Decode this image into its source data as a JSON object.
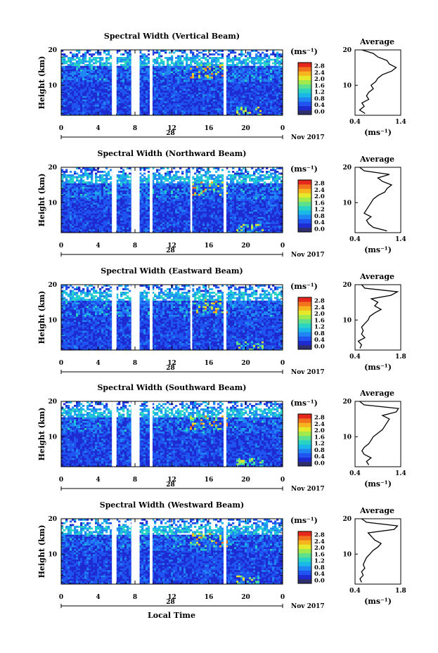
{
  "figure": {
    "bottom_xlabel": "Local Time",
    "colorbar": {
      "unit": "(ms⁻¹)",
      "ticks": [
        "0.0",
        "0.4",
        "0.8",
        "1.2",
        "1.6",
        "2.0",
        "2.4",
        "2.8"
      ],
      "colors": [
        "#2f2f6e",
        "#1e2bd0",
        "#1f54f0",
        "#1f86f3",
        "#19b8e6",
        "#2ad4c3",
        "#5fe08c",
        "#a2ea4c",
        "#e6e92a",
        "#f6b51f",
        "#f2721d",
        "#e5281b"
      ]
    },
    "xaxis_date_label": "Nov 2017",
    "day_label": "28"
  },
  "chart_data": [
    {
      "type": "heatmap",
      "title": "Spectral Width (Vertical Beam)",
      "ylabel": "Height (km)",
      "x_ticks": [
        "0",
        "4",
        "8",
        "12",
        "16",
        "20",
        "0"
      ],
      "xlim": [
        0,
        24
      ],
      "y_ticks": [
        "10",
        "20"
      ],
      "ylim": [
        1.5,
        20
      ],
      "data_gaps_hours": [
        [
          5.5,
          6.0
        ],
        [
          7.6,
          8.5
        ],
        [
          9.6,
          9.9
        ],
        [
          17.6,
          17.9
        ]
      ],
      "average_profile": {
        "title": "Average",
        "x_ticks": [
          "0.4",
          "1.4"
        ],
        "xlim": [
          0.4,
          1.4
        ],
        "xlabel": "(ms⁻¹)",
        "y_ticks": [
          "10",
          "20"
        ],
        "height_km": [
          2,
          3,
          4,
          5,
          6,
          7,
          8,
          9,
          10,
          11,
          12,
          13,
          14,
          15,
          16,
          17,
          18,
          19,
          20
        ],
        "width_ms": [
          0.62,
          0.5,
          0.6,
          0.55,
          0.7,
          0.65,
          0.7,
          0.8,
          0.75,
          0.85,
          0.9,
          1.0,
          1.2,
          1.3,
          1.15,
          1.1,
          0.9,
          0.8,
          0.55
        ]
      }
    },
    {
      "type": "heatmap",
      "title": "Spectral Width (Northward Beam)",
      "ylabel": "Height (km)",
      "x_ticks": [
        "0",
        "4",
        "8",
        "12",
        "16",
        "20",
        "0"
      ],
      "xlim": [
        0,
        24
      ],
      "y_ticks": [
        "10",
        "20"
      ],
      "ylim": [
        1.5,
        20
      ],
      "data_gaps_hours": [
        [
          5.5,
          6.0
        ],
        [
          7.6,
          8.5
        ],
        [
          9.6,
          9.9
        ],
        [
          14.0,
          14.2
        ],
        [
          17.6,
          17.9
        ]
      ],
      "average_profile": {
        "title": "Average",
        "x_ticks": [
          "0.4",
          "1.4"
        ],
        "xlim": [
          0.4,
          1.4
        ],
        "xlabel": "(ms⁻¹)",
        "y_ticks": [
          "10",
          "20"
        ],
        "height_km": [
          2,
          3,
          4,
          5,
          6,
          7,
          8,
          9,
          10,
          11,
          12,
          13,
          14,
          15,
          16,
          17,
          18,
          19,
          20
        ],
        "width_ms": [
          1.1,
          0.8,
          0.7,
          0.65,
          0.75,
          0.6,
          0.65,
          0.7,
          0.75,
          0.8,
          0.9,
          1.05,
          1.1,
          1.2,
          1.0,
          0.9,
          1.15,
          0.6,
          0.5
        ]
      }
    },
    {
      "type": "heatmap",
      "title": "Spectral Width (Eastward Beam)",
      "ylabel": "Height (km)",
      "x_ticks": [
        "0",
        "4",
        "8",
        "12",
        "16",
        "20",
        "0"
      ],
      "xlim": [
        0,
        24
      ],
      "y_ticks": [
        "10",
        "20"
      ],
      "ylim": [
        1.5,
        20
      ],
      "data_gaps_hours": [
        [
          5.5,
          6.0
        ],
        [
          7.6,
          8.5
        ],
        [
          9.6,
          9.9
        ],
        [
          14.0,
          14.2
        ],
        [
          17.6,
          17.9
        ]
      ],
      "average_profile": {
        "title": "Average",
        "x_ticks": [
          "0.4",
          "1.8"
        ],
        "xlim": [
          0.4,
          1.8
        ],
        "xlabel": "(ms⁻¹)",
        "y_ticks": [
          "10",
          "20"
        ],
        "height_km": [
          2,
          3,
          4,
          5,
          6,
          7,
          8,
          9,
          10,
          11,
          12,
          13,
          14,
          15,
          16,
          17,
          18,
          19,
          20
        ],
        "width_ms": [
          0.55,
          0.6,
          0.5,
          0.7,
          0.6,
          0.65,
          0.6,
          0.7,
          0.8,
          0.85,
          1.0,
          1.2,
          1.0,
          1.1,
          0.9,
          1.5,
          1.7,
          0.7,
          0.6
        ]
      }
    },
    {
      "type": "heatmap",
      "title": "Spectral Width (Southward Beam)",
      "ylabel": "Height (km)",
      "x_ticks": [
        "0",
        "4",
        "8",
        "12",
        "16",
        "20",
        "0"
      ],
      "xlim": [
        0,
        24
      ],
      "y_ticks": [
        "10",
        "20"
      ],
      "ylim": [
        1.5,
        20
      ],
      "data_gaps_hours": [
        [
          5.5,
          6.0
        ],
        [
          7.6,
          8.5
        ],
        [
          9.6,
          9.9
        ],
        [
          17.6,
          17.9
        ]
      ],
      "average_profile": {
        "title": "Average",
        "x_ticks": [
          "0.4",
          "1.4"
        ],
        "xlim": [
          0.4,
          1.4
        ],
        "xlabel": "(ms⁻¹)",
        "y_ticks": [
          "10",
          "20"
        ],
        "height_km": [
          2,
          3,
          4,
          5,
          6,
          7,
          8,
          9,
          10,
          11,
          12,
          13,
          14,
          15,
          16,
          17,
          18,
          19,
          20
        ],
        "width_ms": [
          0.7,
          0.65,
          0.75,
          0.6,
          0.55,
          0.6,
          0.7,
          0.75,
          0.8,
          0.9,
          1.0,
          1.05,
          1.1,
          1.15,
          1.0,
          1.3,
          1.35,
          0.6,
          0.5
        ]
      }
    },
    {
      "type": "heatmap",
      "title": "Spectral Width (Westward Beam)",
      "ylabel": "Height (km)",
      "x_ticks": [
        "0",
        "4",
        "8",
        "12",
        "16",
        "20",
        "0"
      ],
      "xlim": [
        0,
        24
      ],
      "y_ticks": [
        "10",
        "20"
      ],
      "ylim": [
        1.5,
        20
      ],
      "data_gaps_hours": [
        [
          5.5,
          6.0
        ],
        [
          7.6,
          8.5
        ],
        [
          9.6,
          9.9
        ],
        [
          17.6,
          17.9
        ]
      ],
      "average_profile": {
        "title": "Average",
        "x_ticks": [
          "0.4",
          "1.8"
        ],
        "xlim": [
          0.4,
          1.8
        ],
        "xlabel": "(ms⁻¹)",
        "y_ticks": [
          "10",
          "20"
        ],
        "height_km": [
          2,
          3,
          4,
          5,
          6,
          7,
          8,
          9,
          10,
          11,
          12,
          13,
          14,
          15,
          16,
          17,
          18,
          19,
          20
        ],
        "width_ms": [
          0.6,
          0.55,
          0.65,
          0.6,
          0.7,
          0.65,
          0.7,
          0.75,
          0.85,
          0.95,
          1.1,
          1.2,
          1.0,
          0.9,
          0.8,
          1.6,
          1.7,
          0.75,
          0.6
        ]
      }
    }
  ]
}
